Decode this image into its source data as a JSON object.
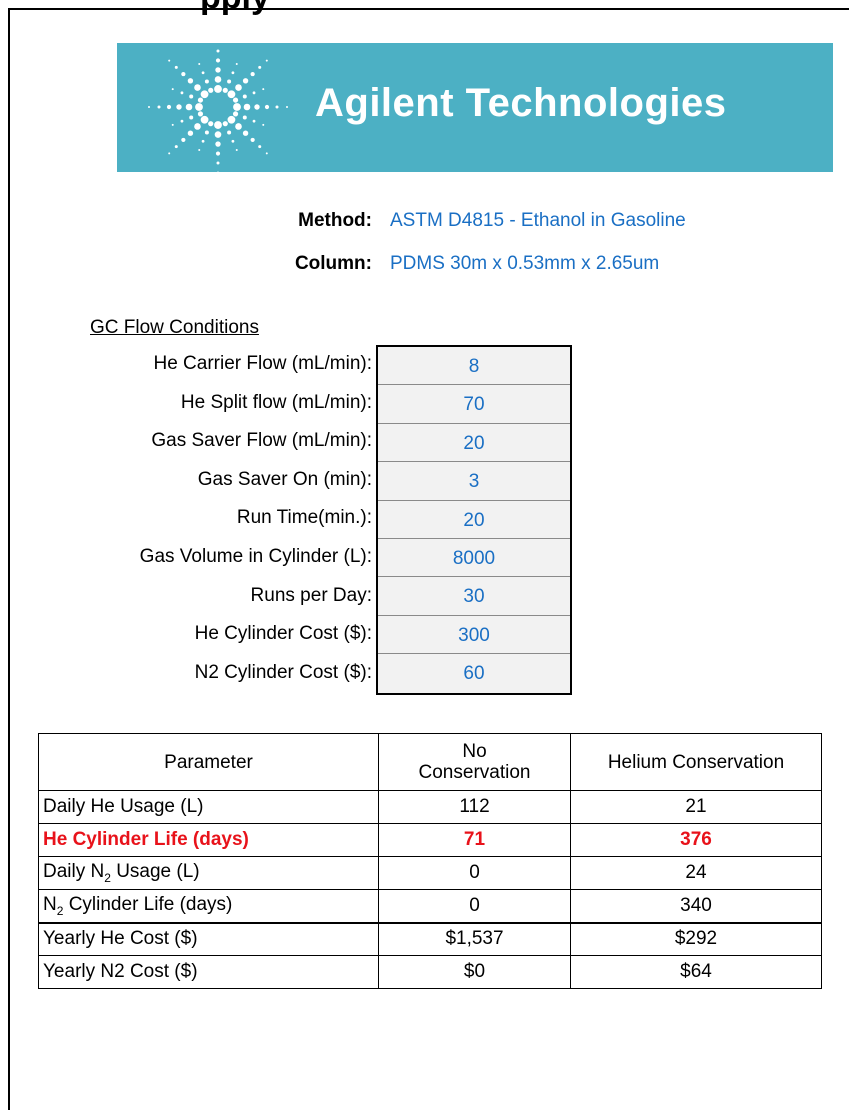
{
  "title": "pply",
  "logo": "Agilent Technologies",
  "method": {
    "label": "Method:",
    "value": "ASTM D4815 - Ethanol in Gasoline"
  },
  "column": {
    "label": "Column:",
    "value": "PDMS 30m x 0.53mm x 2.65um"
  },
  "conditions": {
    "heading": "GC Flow Conditions",
    "rows": [
      {
        "label": "He Carrier Flow (mL/min):",
        "value": 8
      },
      {
        "label": "He Split flow (mL/min):",
        "value": 70
      },
      {
        "label": "Gas Saver Flow (mL/min):",
        "value": 20
      },
      {
        "label": "Gas Saver On (min):",
        "value": 3
      },
      {
        "label": "Run Time(min.):",
        "value": 20
      },
      {
        "label": "Gas Volume in Cylinder (L):",
        "value": 8000
      },
      {
        "label": "Runs per Day:",
        "value": 30
      },
      {
        "label": "He Cylinder Cost ($):",
        "value": 300
      },
      {
        "label": "N2 Cylinder Cost ($):",
        "value": 60
      }
    ]
  },
  "table": {
    "headers": [
      "Parameter",
      "No Conservation",
      "Helium Conservation"
    ],
    "rows": [
      [
        {
          "text": "Daily He Usage (L)"
        },
        112,
        21
      ],
      [
        {
          "text": "He Cylinder Life (days)"
        },
        71,
        376
      ],
      [
        {
          "text": "Daily N",
          "sub": "2",
          "rest": " Usage (L)"
        },
        0,
        24
      ],
      [
        {
          "text": "N",
          "sub": "2",
          "rest": " Cylinder Life (days)"
        },
        0,
        340
      ],
      [
        {
          "text": "Yearly He Cost ($)"
        },
        "$1,537",
        "$292"
      ],
      [
        {
          "text": "Yearly N2 Cost ($)"
        },
        "$0",
        "$64"
      ]
    ]
  }
}
